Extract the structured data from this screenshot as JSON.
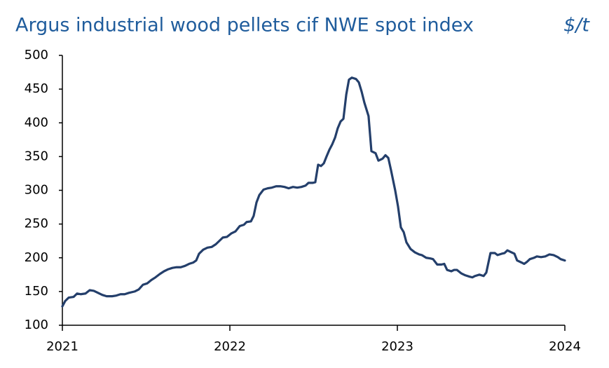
{
  "chart_data": {
    "type": "line",
    "title": "Argus industrial wood pellets cif NWE spot index",
    "y_label": "$/t",
    "xlim": [
      2021,
      2024
    ],
    "xticks": [
      2021,
      2022,
      2023,
      2024
    ],
    "ylim": [
      100,
      500
    ],
    "yticks": [
      100,
      150,
      200,
      250,
      300,
      350,
      400,
      450,
      500
    ],
    "grid": false,
    "series": [
      {
        "name": "Argus industrial wood pellets cif NWE spot index",
        "color": "#243f6b",
        "x": [
          2021.0,
          2021.017,
          2021.038,
          2021.067,
          2021.088,
          2021.109,
          2021.138,
          2021.163,
          2021.188,
          2021.213,
          2021.238,
          2021.264,
          2021.297,
          2021.322,
          2021.347,
          2021.372,
          2021.397,
          2021.431,
          2021.456,
          2021.481,
          2021.506,
          2021.531,
          2021.556,
          2021.582,
          2021.607,
          2021.632,
          2021.657,
          2021.682,
          2021.707,
          2021.732,
          2021.757,
          2021.782,
          2021.799,
          2021.816,
          2021.841,
          2021.866,
          2021.891,
          2021.916,
          2021.933,
          2021.958,
          2021.983,
          2022.008,
          2022.033,
          2022.059,
          2022.084,
          2022.1,
          2022.126,
          2022.142,
          2022.159,
          2022.176,
          2022.201,
          2022.226,
          2022.251,
          2022.276,
          2022.301,
          2022.326,
          2022.351,
          2022.377,
          2022.402,
          2022.427,
          2022.452,
          2022.469,
          2022.494,
          2022.51,
          2022.527,
          2022.544,
          2022.561,
          2022.577,
          2022.594,
          2022.611,
          2022.628,
          2022.644,
          2022.661,
          2022.678,
          2022.695,
          2022.711,
          2022.728,
          2022.753,
          2022.77,
          2022.787,
          2022.803,
          2022.828,
          2022.845,
          2022.87,
          2022.887,
          2022.912,
          2022.929,
          2022.946,
          2022.962,
          2022.987,
          2023.004,
          2023.021,
          2023.038,
          2023.054,
          2023.079,
          2023.105,
          2023.13,
          2023.146,
          2023.172,
          2023.197,
          2023.213,
          2023.238,
          2023.264,
          2023.28,
          2023.297,
          2023.322,
          2023.339,
          2023.356,
          2023.381,
          2023.406,
          2023.431,
          2023.448,
          2023.464,
          2023.49,
          2023.515,
          2023.531,
          2023.556,
          2023.582,
          2023.598,
          2023.623,
          2023.64,
          2023.657,
          2023.682,
          2023.699,
          2023.715,
          2023.741,
          2023.757,
          2023.774,
          2023.791,
          2023.816,
          2023.833,
          2023.858,
          2023.883,
          2023.908,
          2023.933,
          2023.958,
          2023.975,
          2024.0
        ],
        "values": [
          128,
          136,
          141,
          142,
          147,
          146,
          147,
          152,
          151,
          148,
          145,
          143,
          143,
          144,
          146,
          146,
          148,
          150,
          153,
          160,
          162,
          167,
          171,
          176,
          180,
          183,
          185,
          186,
          186,
          188,
          191,
          193,
          196,
          206,
          212,
          215,
          216,
          220,
          224,
          230,
          231,
          236,
          239,
          247,
          249,
          253,
          254,
          262,
          282,
          293,
          301,
          303,
          304,
          306,
          306,
          305,
          303,
          305,
          304,
          305,
          307,
          311,
          311,
          312,
          338,
          336,
          340,
          350,
          360,
          368,
          378,
          392,
          402,
          406,
          442,
          464,
          467,
          465,
          460,
          446,
          430,
          410,
          358,
          355,
          344,
          347,
          352,
          348,
          330,
          300,
          276,
          245,
          238,
          223,
          213,
          208,
          205,
          204,
          200,
          199,
          198,
          190,
          190,
          191,
          182,
          180,
          182,
          182,
          177,
          174,
          172,
          171,
          173,
          175,
          173,
          178,
          207,
          207,
          204,
          206,
          207,
          211,
          208,
          206,
          196,
          193,
          191,
          194,
          198,
          200,
          202,
          201,
          202,
          205,
          204,
          201,
          198,
          196
        ]
      }
    ]
  }
}
